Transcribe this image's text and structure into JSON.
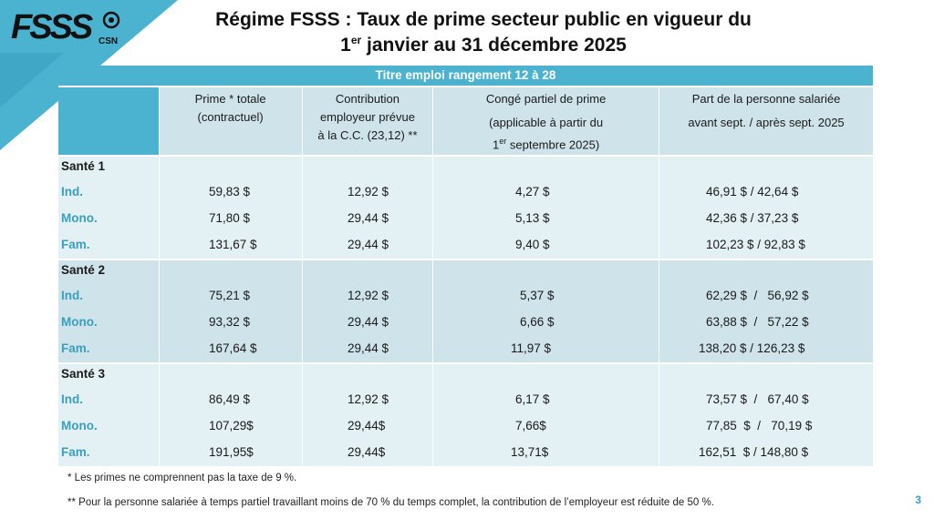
{
  "logo": {
    "main": "FSSS",
    "sub": "CSN"
  },
  "title": {
    "line1": "Régime FSSS : Taux de prime secteur public en vigueur du",
    "line2_num": "1",
    "line2_sup": "er",
    "line2_rest": " janvier au 31 décembre 2025"
  },
  "table": {
    "band": "Titre emploi rangement 12 à 28",
    "headers": {
      "col1": [
        "Prime * totale",
        "(contractuel)"
      ],
      "col2": [
        "Contribution",
        "employeur prévue",
        "à la C.C. (23,12) **"
      ],
      "col3_line1": "Congé partiel de prime",
      "col3_line2": "(applicable à partir du",
      "col3_line3_num": "1",
      "col3_line3_sup": "er",
      "col3_line3_rest": " septembre 2025)",
      "col4": [
        "Part de la personne salariée",
        "avant sept. / après sept. 2025"
      ]
    },
    "sections": [
      {
        "name": "Santé 1",
        "rows": [
          {
            "label": "Ind.",
            "prime": "59,83 $",
            "contribution": "12,92 $",
            "conge": "4,27 $",
            "part": "46,91 $ / 42,64 $"
          },
          {
            "label": "Mono.",
            "prime": "71,80 $",
            "contribution": "29,44 $",
            "conge": "5,13 $",
            "part": "42,36 $ / 37,23 $"
          },
          {
            "label": "Fam.",
            "prime": "131,67 $",
            "contribution": "29,44 $",
            "conge": "9,40 $",
            "part": "102,23 $ / 92,83 $"
          }
        ]
      },
      {
        "name": "Santé 2",
        "rows": [
          {
            "label": "Ind.",
            "prime": "75,21 $",
            "contribution": "12,92 $",
            "conge": "5,37 $",
            "part": "62,29 $  /   56,92 $"
          },
          {
            "label": "Mono.",
            "prime": "93,32 $",
            "contribution": "29,44 $",
            "conge": "6,66 $",
            "part": "63,88 $  /   57,22 $"
          },
          {
            "label": "Fam.",
            "prime": "167,64 $",
            "contribution": "29,44 $",
            "conge": "11,97 $",
            "part": "138,20 $ / 126,23 $"
          }
        ]
      },
      {
        "name": "Santé 3",
        "rows": [
          {
            "label": "Ind.",
            "prime": "86,49 $",
            "contribution": "12,92 $",
            "conge": "6,17 $",
            "part": "73,57 $  /   67,40 $"
          },
          {
            "label": "Mono.",
            "prime": "107,29$",
            "contribution": "29,44$",
            "conge": "7,66$",
            "part": "77,85  $  /   70,19 $"
          },
          {
            "label": "Fam.",
            "prime": "191,95$",
            "contribution": "29,44$",
            "conge": "13,71$",
            "part": "162,51  $ / 148,80 $"
          }
        ]
      }
    ]
  },
  "notes": {
    "note1": "*   Les primes ne comprennent pas la taxe de 9 %.",
    "note2": "** Pour la personne salariée à temps partiel travaillant moins de 70 % du temps complet, la contribution de l’employeur est réduite de 50 %."
  },
  "page_number": "3",
  "colors": {
    "accent": "#4bb2cf",
    "row_light": "#e3f0f4",
    "row_dark": "#cfe4ea",
    "label_blue": "#3a9fbf"
  }
}
